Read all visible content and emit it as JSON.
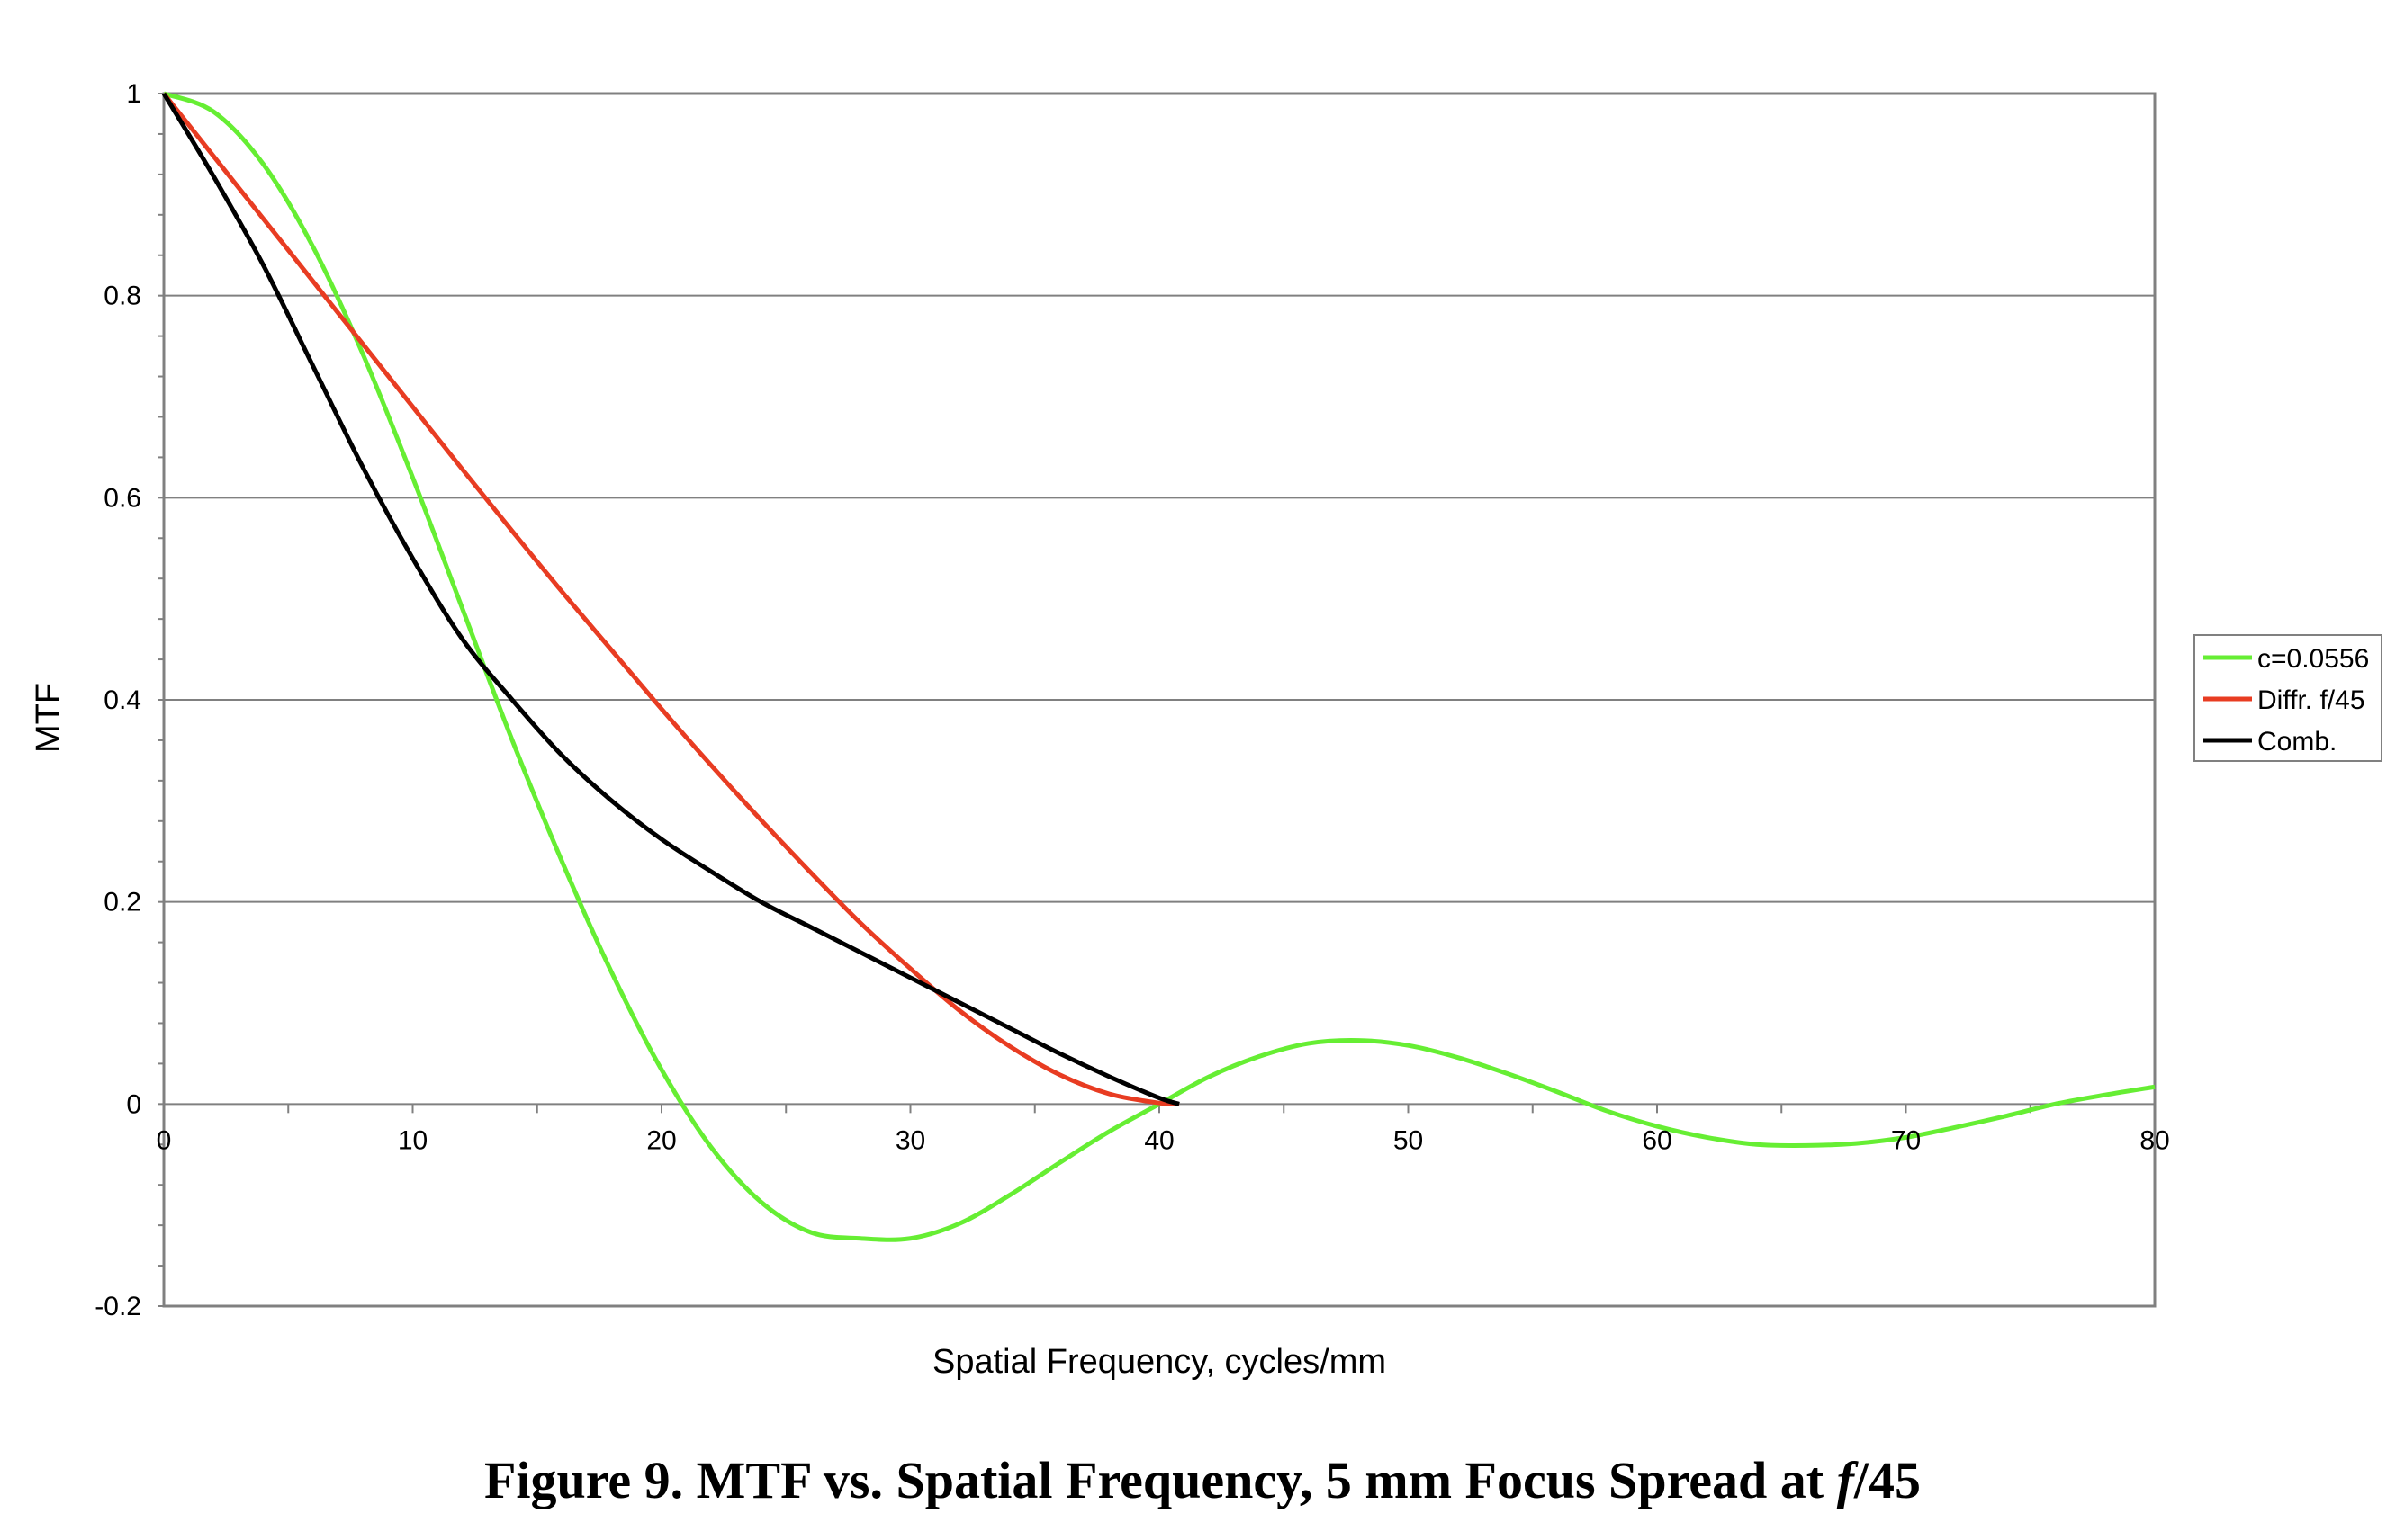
{
  "caption": {
    "prefix": "Figure 9. MTF vs. Spatial Frequency, 5 mm Focus Spread at ",
    "italic": "f",
    "suffix": "/45"
  },
  "chart_data": {
    "type": "line",
    "title": "",
    "xlabel": "Spatial Frequency, cycles/mm",
    "ylabel": "MTF",
    "xlim": [
      0,
      80
    ],
    "ylim": [
      -0.2,
      1
    ],
    "x_ticks": [
      0,
      10,
      20,
      30,
      40,
      50,
      60,
      70,
      80
    ],
    "x_tick_labels": [
      "0",
      "10",
      "20",
      "30",
      "40",
      "50",
      "60",
      "70",
      "80"
    ],
    "y_ticks": [
      -0.2,
      0,
      0.2,
      0.4,
      0.6,
      0.8,
      1
    ],
    "y_tick_labels": [
      "-0.2",
      "0",
      "0.2",
      "0.4",
      "0.6",
      "0.8",
      "1"
    ],
    "grid": "horizontal",
    "legend_position": "right",
    "series": [
      {
        "name": "c=0.0556",
        "color": "#66ee33",
        "x": [
          0,
          2,
          4,
          6,
          8,
          10,
          12,
          14,
          16,
          18,
          20,
          22,
          24,
          26,
          28,
          30,
          32,
          34,
          36,
          38,
          40,
          42,
          44,
          46,
          48,
          50,
          52,
          54,
          56,
          58,
          60,
          62,
          64,
          66,
          68,
          70,
          72,
          74,
          76,
          78,
          80
        ],
        "y": [
          1.0,
          0.982,
          0.93,
          0.848,
          0.742,
          0.62,
          0.49,
          0.36,
          0.24,
          0.13,
          0.034,
          -0.043,
          -0.097,
          -0.127,
          -0.133,
          -0.133,
          -0.118,
          -0.09,
          -0.058,
          -0.027,
          0.0,
          0.027,
          0.047,
          0.06,
          0.063,
          0.058,
          0.046,
          0.03,
          0.012,
          -0.007,
          -0.022,
          -0.033,
          -0.04,
          -0.041,
          -0.039,
          -0.033,
          -0.023,
          -0.012,
          0.0,
          0.009,
          0.017
        ]
      },
      {
        "name": "Diffr. f/45",
        "color": "#e83c22",
        "x": [
          0,
          2,
          4,
          6,
          8,
          10,
          12,
          14,
          16,
          18,
          20,
          22,
          24,
          26,
          28,
          30,
          32,
          34,
          36,
          38,
          40,
          40.8
        ],
        "y": [
          1.0,
          0.938,
          0.876,
          0.814,
          0.752,
          0.69,
          0.628,
          0.567,
          0.507,
          0.449,
          0.391,
          0.335,
          0.281,
          0.229,
          0.179,
          0.134,
          0.092,
          0.057,
          0.029,
          0.01,
          0.001,
          0.0
        ]
      },
      {
        "name": "Comb.",
        "color": "#000000",
        "x": [
          0,
          2,
          4,
          6,
          8,
          10,
          12,
          14,
          16,
          18,
          20,
          22,
          24,
          26,
          28,
          30,
          32,
          34,
          36,
          38,
          40,
          40.8
        ],
        "y": [
          1.0,
          0.918,
          0.83,
          0.73,
          0.63,
          0.54,
          0.46,
          0.4,
          0.345,
          0.3,
          0.262,
          0.23,
          0.2,
          0.175,
          0.15,
          0.125,
          0.1,
          0.075,
          0.05,
          0.027,
          0.006,
          0.0
        ]
      }
    ]
  }
}
